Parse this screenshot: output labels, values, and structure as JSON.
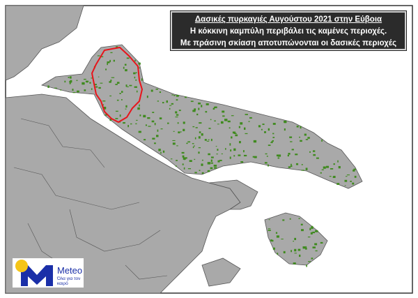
{
  "title_box": {
    "line1": "Δασικές πυρκαγιές Αυγούστου 2021 στην Εύβοια",
    "line2": "Η κόκκινη καμπύλη περιβάλει τις καμένες περιοχές.",
    "line3": "Με πράσινη σκίαση αποτυπώνονται οι δασικές περιοχές"
  },
  "logo": {
    "name": "Meteo",
    "tagline": "Όλα για τον καιρό"
  },
  "colors": {
    "land": "#a9a9a9",
    "sea": "#ffffff",
    "borders": "#555555",
    "forest": "#3f8a1e",
    "burned_outline": "#e8141b",
    "title_bg": "#2b2b2b",
    "logo_blue": "#1a2fa8",
    "logo_sun": "#f5c518"
  }
}
